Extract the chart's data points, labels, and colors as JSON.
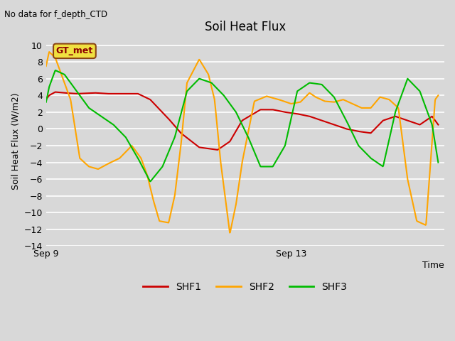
{
  "title": "Soil Heat Flux",
  "top_left_text": "No data for f_depth_CTD",
  "ylabel": "Soil Heat Flux (W/m2)",
  "xlabel": "Time",
  "annotation_box": "GT_met",
  "xlim_days": [
    0,
    6.5
  ],
  "ylim": [
    -14,
    11
  ],
  "yticks": [
    -14,
    -12,
    -10,
    -8,
    -6,
    -4,
    -2,
    0,
    2,
    4,
    6,
    8,
    10
  ],
  "xtick_labels": [
    "Sep 9",
    "Sep 13"
  ],
  "xtick_positions": [
    0.0,
    4.0
  ],
  "bg_color": "#d8d8d8",
  "plot_bg_color": "#d8d8d8",
  "grid_color": "#ffffff",
  "shf1_color": "#cc0000",
  "shf2_color": "#ffa500",
  "shf3_color": "#00bb00",
  "legend_labels": [
    "SHF1",
    "SHF2",
    "SHF3"
  ]
}
